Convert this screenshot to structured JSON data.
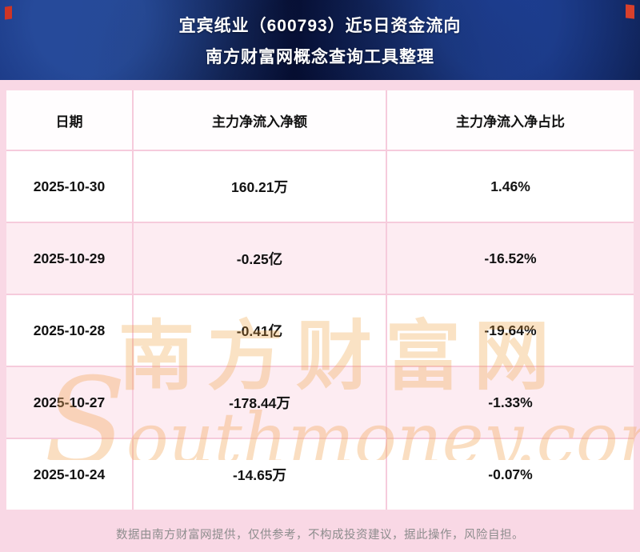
{
  "chart_data": {
    "type": "table",
    "title": "宜宾纸业（600793）近5日资金流向",
    "subtitle": "南方财富网概念查询工具整理",
    "columns": [
      "日期",
      "主力净流入净额",
      "主力净流入净占比"
    ],
    "rows": [
      [
        "2025-10-30",
        "160.21万",
        "1.46%"
      ],
      [
        "2025-10-29",
        "-0.25亿",
        "-16.52%"
      ],
      [
        "2025-10-28",
        "-0.41亿",
        "-19.64%"
      ],
      [
        "2025-10-27",
        "-178.44万",
        "-1.33%"
      ],
      [
        "2025-10-24",
        "-14.65万",
        "-0.07%"
      ]
    ],
    "layout": {
      "row_stripes": [
        "white",
        "pink",
        "white",
        "pink",
        "white"
      ],
      "legend": "none",
      "grid": "pink-separators"
    }
  },
  "watermark": {
    "cn": "南方财富网",
    "en": "Southmoney.com"
  },
  "footer": {
    "disclaimer": "数据由南方财富网提供，仅供参考，不构成投资建议，据此操作，风险自担。"
  },
  "colors": {
    "banner_bg": "#0a1a52",
    "page_bg": "#f9d8e5",
    "row_pink": "#fdecf2",
    "row_white": "#ffffff",
    "watermark_orange": "#ee9e3a",
    "title_text": "#ffffff",
    "footer_text": "#8d8d8d"
  }
}
